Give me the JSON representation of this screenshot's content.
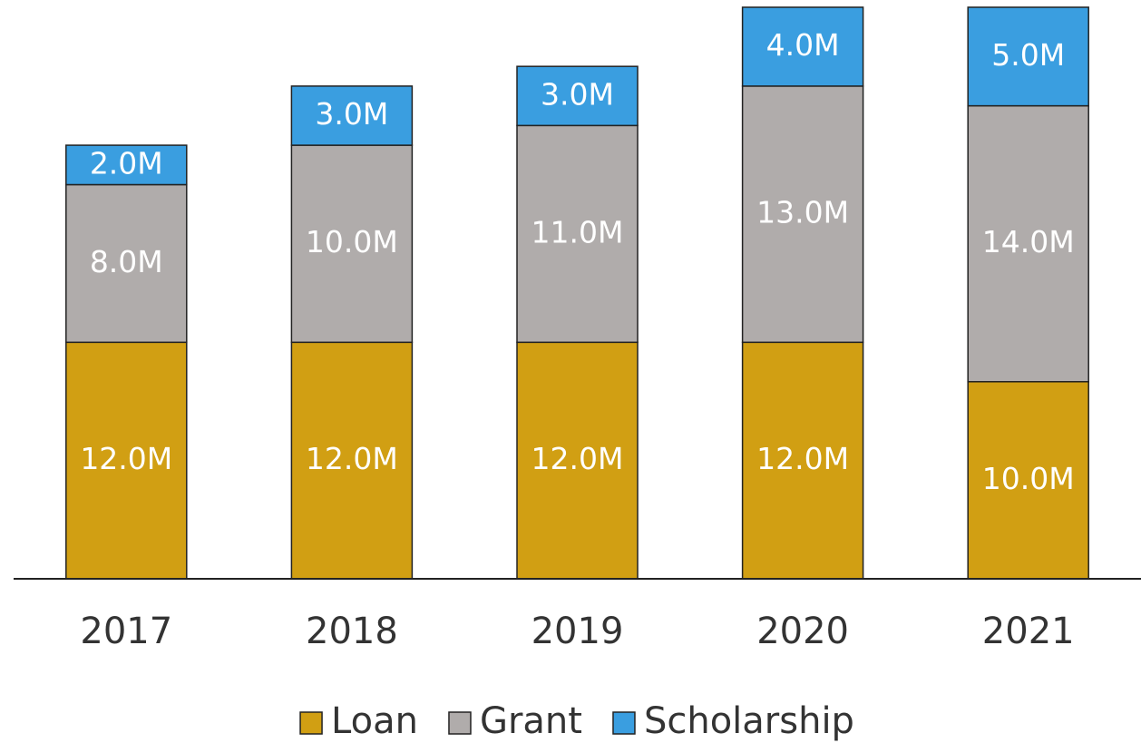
{
  "chart_data": {
    "type": "stacked_bar",
    "categories": [
      "2017",
      "2018",
      "2019",
      "2020",
      "2021"
    ],
    "series": [
      {
        "name": "Loan",
        "color": "#d19f13",
        "values": [
          12,
          12,
          12,
          12,
          10
        ],
        "value_labels": [
          "12.0M",
          "12.0M",
          "12.0M",
          "12.0M",
          "10.0M"
        ]
      },
      {
        "name": "Grant",
        "color": "#b0acab",
        "values": [
          8,
          10,
          11,
          13,
          14
        ],
        "value_labels": [
          "8.0M",
          "10.0M",
          "11.0M",
          "13.0M",
          "14.0M"
        ]
      },
      {
        "name": "Scholarship",
        "color": "#3a9ee0",
        "values": [
          2,
          3,
          3,
          4,
          5
        ],
        "value_labels": [
          "2.0M",
          "3.0M",
          "3.0M",
          "4.0M",
          "5.0M"
        ]
      }
    ]
  }
}
